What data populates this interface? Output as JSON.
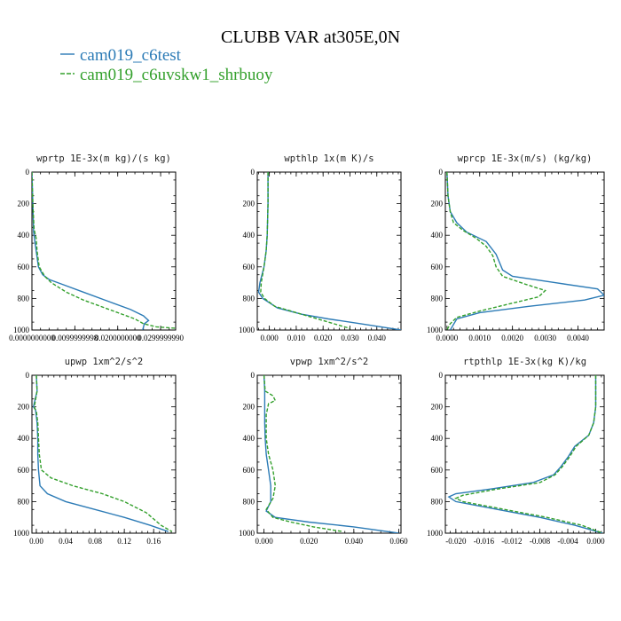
{
  "figure": {
    "title": "CLUBB VAR at305E,0N",
    "legend": [
      {
        "label": "cam019_c6test",
        "color": "#2c7bb6",
        "dash": false
      },
      {
        "label": "cam019_c6uvskw1_shrbuoy",
        "color": "#33a02c",
        "dash": true
      }
    ]
  },
  "chart_data": [
    {
      "type": "line",
      "title": "wprtp  1E-3x(m kg)/(s kg)",
      "xlim": [
        0,
        0.0335
      ],
      "ylim": [
        1000,
        0
      ],
      "yticks": [
        0,
        200,
        400,
        600,
        800,
        1000
      ],
      "xticks": [
        0.0,
        0.01,
        0.02,
        0.03
      ],
      "xtick_labels": [
        "0.0000000000",
        "0.0099999998",
        "0.0200000000",
        "0.0299999990"
      ],
      "series": [
        {
          "name": "cam019_c6test",
          "points": [
            [
              0,
              0
            ],
            [
              0.0002,
              200
            ],
            [
              0.0004,
              380
            ],
            [
              0.001,
              500
            ],
            [
              0.0015,
              600
            ],
            [
              0.0025,
              650
            ],
            [
              0.004,
              680
            ],
            [
              0.007,
              710
            ],
            [
              0.012,
              760
            ],
            [
              0.018,
              820
            ],
            [
              0.023,
              870
            ],
            [
              0.026,
              910
            ],
            [
              0.0272,
              940
            ],
            [
              0.0262,
              960
            ],
            [
              0.0258,
              1000
            ]
          ]
        },
        {
          "name": "cam019_c6uvskw1_shrbuoy",
          "points": [
            [
              0,
              0
            ],
            [
              0.0002,
              200
            ],
            [
              0.0005,
              360
            ],
            [
              0.001,
              420
            ],
            [
              0.0012,
              500
            ],
            [
              0.0017,
              600
            ],
            [
              0.003,
              660
            ],
            [
              0.0045,
              700
            ],
            [
              0.008,
              760
            ],
            [
              0.012,
              810
            ],
            [
              0.016,
              850
            ],
            [
              0.02,
              890
            ],
            [
              0.024,
              930
            ],
            [
              0.026,
              960
            ],
            [
              0.029,
              980
            ],
            [
              0.034,
              990
            ]
          ]
        }
      ]
    },
    {
      "type": "line",
      "title": "wpthlp  1x(m K)/s",
      "xlim": [
        -0.0045,
        0.049
      ],
      "ylim": [
        1000,
        0
      ],
      "yticks": [
        0,
        200,
        400,
        600,
        800,
        1000
      ],
      "xticks": [
        0.0,
        0.01,
        0.02,
        0.03,
        0.04
      ],
      "xtick_labels": [
        "0.000",
        "0.010",
        "0.020",
        "0.030",
        "0.040"
      ],
      "series": [
        {
          "name": "cam019_c6test",
          "points": [
            [
              -0.0005,
              0
            ],
            [
              -0.0005,
              200
            ],
            [
              -0.0008,
              400
            ],
            [
              -0.0012,
              500
            ],
            [
              -0.002,
              600
            ],
            [
              -0.0035,
              700
            ],
            [
              -0.004,
              760
            ],
            [
              -0.0025,
              800
            ],
            [
              0.003,
              860
            ],
            [
              0.012,
              900
            ],
            [
              0.022,
              930
            ],
            [
              0.034,
              960
            ],
            [
              0.049,
              1000
            ]
          ]
        },
        {
          "name": "cam019_c6uvskw1_shrbuoy",
          "points": [
            [
              -0.0005,
              0
            ],
            [
              -0.0005,
              200
            ],
            [
              -0.0008,
              400
            ],
            [
              -0.0012,
              500
            ],
            [
              -0.002,
              600
            ],
            [
              -0.003,
              700
            ],
            [
              -0.0032,
              760
            ],
            [
              -0.0018,
              800
            ],
            [
              0.002,
              850
            ],
            [
              0.008,
              880
            ],
            [
              0.014,
              910
            ],
            [
              0.02,
              940
            ],
            [
              0.026,
              970
            ],
            [
              0.03,
              990
            ]
          ]
        }
      ]
    },
    {
      "type": "line",
      "title": "wprcp  1E-3x(m/s) (kg/kg)",
      "xlim": [
        -5e-05,
        0.0048
      ],
      "ylim": [
        1000,
        0
      ],
      "yticks": [
        0,
        200,
        400,
        600,
        800,
        1000
      ],
      "xticks": [
        0.0,
        0.001,
        0.002,
        0.003,
        0.004
      ],
      "xtick_labels": [
        "0.0000",
        "0.0010",
        "0.0020",
        "0.0030",
        "0.0040"
      ],
      "series": [
        {
          "name": "cam019_c6test",
          "points": [
            [
              0,
              0
            ],
            [
              3e-05,
              150
            ],
            [
              0.0001,
              250
            ],
            [
              0.0003,
              320
            ],
            [
              0.0006,
              380
            ],
            [
              0.0012,
              440
            ],
            [
              0.0015,
              520
            ],
            [
              0.0017,
              620
            ],
            [
              0.002,
              660
            ],
            [
              0.0033,
              700
            ],
            [
              0.0046,
              740
            ],
            [
              0.0048,
              780
            ],
            [
              0.0042,
              810
            ],
            [
              0.0025,
              850
            ],
            [
              0.001,
              890
            ],
            [
              0.0003,
              930
            ],
            [
              0.0001,
              1000
            ]
          ]
        },
        {
          "name": "cam019_c6uvskw1_shrbuoy",
          "points": [
            [
              0,
              0
            ],
            [
              3e-05,
              150
            ],
            [
              0.0001,
              250
            ],
            [
              0.0002,
              320
            ],
            [
              0.0005,
              370
            ],
            [
              0.0009,
              420
            ],
            [
              0.0012,
              470
            ],
            [
              0.0014,
              530
            ],
            [
              0.0015,
              600
            ],
            [
              0.0017,
              660
            ],
            [
              0.0024,
              710
            ],
            [
              0.003,
              750
            ],
            [
              0.0028,
              790
            ],
            [
              0.002,
              830
            ],
            [
              0.001,
              880
            ],
            [
              0.0003,
              920
            ],
            [
              0.0001,
              960
            ],
            [
              0,
              1000
            ]
          ]
        }
      ]
    },
    {
      "type": "line",
      "title": "upwp   1xm^2/s^2",
      "xlim": [
        -0.006,
        0.19
      ],
      "ylim": [
        1000,
        0
      ],
      "yticks": [
        0,
        200,
        400,
        600,
        800,
        1000
      ],
      "xticks": [
        0.0,
        0.04,
        0.08,
        0.12,
        0.16
      ],
      "xtick_labels": [
        "0.00",
        "0.04",
        "0.08",
        "0.12",
        "0.16"
      ],
      "series": [
        {
          "name": "cam019_c6test",
          "points": [
            [
              0,
              0
            ],
            [
              0.001,
              100
            ],
            [
              -0.003,
              180
            ],
            [
              -0.004,
              200
            ],
            [
              -0.001,
              220
            ],
            [
              0.001,
              300
            ],
            [
              0.002,
              400
            ],
            [
              0.002,
              500
            ],
            [
              0.003,
              600
            ],
            [
              0.005,
              700
            ],
            [
              0.015,
              750
            ],
            [
              0.04,
              800
            ],
            [
              0.08,
              850
            ],
            [
              0.12,
              900
            ],
            [
              0.155,
              950
            ],
            [
              0.18,
              990
            ]
          ]
        },
        {
          "name": "cam019_c6uvskw1_shrbuoy",
          "points": [
            [
              0,
              0
            ],
            [
              0.001,
              100
            ],
            [
              -0.002,
              180
            ],
            [
              -0.003,
              200
            ],
            [
              0.0,
              230
            ],
            [
              0.002,
              300
            ],
            [
              0.003,
              400
            ],
            [
              0.004,
              500
            ],
            [
              0.007,
              600
            ],
            [
              0.02,
              650
            ],
            [
              0.05,
              700
            ],
            [
              0.09,
              750
            ],
            [
              0.12,
              800
            ],
            [
              0.15,
              870
            ],
            [
              0.17,
              950
            ],
            [
              0.185,
              990
            ]
          ]
        }
      ]
    },
    {
      "type": "line",
      "title": "vpwp   1xm^2/s^2",
      "xlim": [
        -0.003,
        0.061
      ],
      "ylim": [
        1000,
        0
      ],
      "yticks": [
        0,
        200,
        400,
        600,
        800,
        1000
      ],
      "xticks": [
        0.0,
        0.02,
        0.04,
        0.06
      ],
      "xtick_labels": [
        "0.000",
        "0.020",
        "0.040",
        "0.060"
      ],
      "series": [
        {
          "name": "cam019_c6test",
          "points": [
            [
              0,
              0
            ],
            [
              0.0003,
              100
            ],
            [
              0.0003,
              200
            ],
            [
              0.0003,
              300
            ],
            [
              0.0005,
              400
            ],
            [
              0.001,
              500
            ],
            [
              0.002,
              600
            ],
            [
              0.003,
              700
            ],
            [
              0.003,
              800
            ],
            [
              0.001,
              860
            ],
            [
              0.005,
              900
            ],
            [
              0.02,
              930
            ],
            [
              0.04,
              960
            ],
            [
              0.06,
              1000
            ]
          ]
        },
        {
          "name": "cam019_c6uvskw1_shrbuoy",
          "points": [
            [
              0,
              0
            ],
            [
              0.0005,
              100
            ],
            [
              0.004,
              130
            ],
            [
              0.005,
              160
            ],
            [
              0.002,
              180
            ],
            [
              0.001,
              250
            ],
            [
              0.001,
              400
            ],
            [
              0.002,
              500
            ],
            [
              0.004,
              600
            ],
            [
              0.005,
              700
            ],
            [
              0.004,
              780
            ],
            [
              0.001,
              850
            ],
            [
              0.004,
              900
            ],
            [
              0.012,
              930
            ],
            [
              0.022,
              960
            ],
            [
              0.035,
              990
            ]
          ]
        }
      ]
    },
    {
      "type": "line",
      "title": "rtpthlp  1E-3x(kg K)/kg",
      "xlim": [
        -0.0215,
        0.0012
      ],
      "ylim": [
        1000,
        0
      ],
      "yticks": [
        0,
        200,
        400,
        600,
        800,
        1000
      ],
      "xticks": [
        -0.02,
        -0.016,
        -0.012,
        -0.008,
        -0.004,
        0.0
      ],
      "xtick_labels": [
        "-0.020",
        "-0.016",
        "-0.012",
        "-0.008",
        "-0.004",
        "0.000"
      ],
      "series": [
        {
          "name": "cam019_c6test",
          "points": [
            [
              0,
              0
            ],
            [
              0,
              200
            ],
            [
              -0.0003,
              300
            ],
            [
              -0.001,
              380
            ],
            [
              -0.003,
              450
            ],
            [
              -0.004,
              520
            ],
            [
              -0.005,
              580
            ],
            [
              -0.006,
              630
            ],
            [
              -0.009,
              680
            ],
            [
              -0.015,
              720
            ],
            [
              -0.02,
              750
            ],
            [
              -0.021,
              770
            ],
            [
              -0.02,
              800
            ],
            [
              -0.014,
              850
            ],
            [
              -0.008,
              900
            ],
            [
              -0.003,
              950
            ],
            [
              0.001,
              1000
            ]
          ]
        },
        {
          "name": "cam019_c6uvskw1_shrbuoy",
          "points": [
            [
              0,
              0
            ],
            [
              0,
              200
            ],
            [
              -0.0003,
              300
            ],
            [
              -0.001,
              380
            ],
            [
              -0.0028,
              450
            ],
            [
              -0.0038,
              520
            ],
            [
              -0.0048,
              580
            ],
            [
              -0.0058,
              630
            ],
            [
              -0.008,
              680
            ],
            [
              -0.014,
              720
            ],
            [
              -0.019,
              760
            ],
            [
              -0.02,
              780
            ],
            [
              -0.019,
              800
            ],
            [
              -0.013,
              850
            ],
            [
              -0.007,
              900
            ],
            [
              -0.002,
              950
            ],
            [
              0.001,
              1000
            ]
          ]
        }
      ]
    }
  ]
}
